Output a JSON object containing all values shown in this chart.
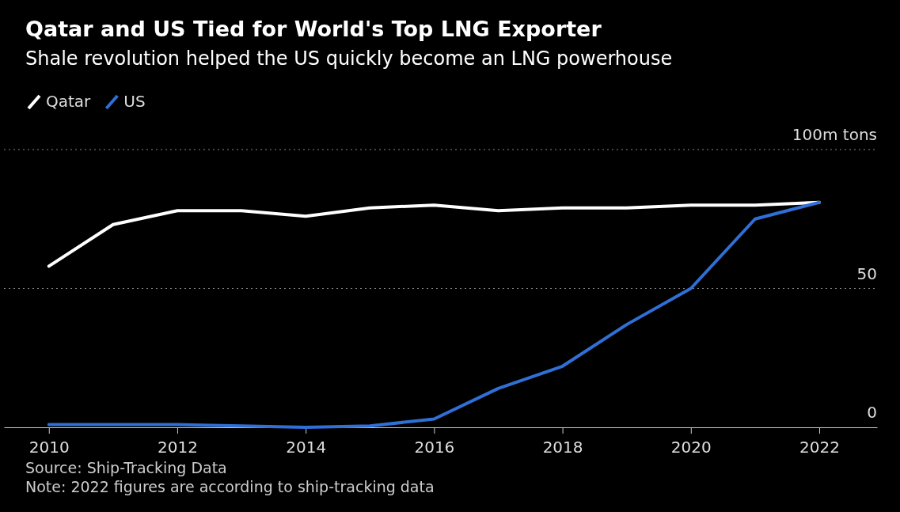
{
  "chart_data": {
    "type": "line",
    "title": "Qatar and US Tied for World's Top LNG Exporter",
    "subtitle": "Shale revolution helped the US quickly become an LNG powerhouse",
    "x": [
      2010,
      2011,
      2012,
      2013,
      2014,
      2015,
      2016,
      2017,
      2018,
      2019,
      2020,
      2021,
      2022
    ],
    "series": [
      {
        "name": "Qatar",
        "color": "#ffffff",
        "values": [
          58,
          73,
          78,
          78,
          76,
          79,
          80,
          78,
          79,
          79,
          80,
          80,
          81
        ]
      },
      {
        "name": "US",
        "color": "#2f6fd6",
        "values": [
          1,
          1,
          1,
          0.5,
          0,
          0.5,
          3,
          14,
          22,
          37,
          50,
          75,
          81
        ]
      }
    ],
    "xlim": [
      2009.3,
      2022.9
    ],
    "xticks": [
      2010,
      2012,
      2014,
      2016,
      2018,
      2020,
      2022
    ],
    "ylim": [
      0,
      100
    ],
    "yticks": [
      0,
      50,
      {
        "value": 100,
        "label": "100m tons"
      }
    ],
    "grid": "y",
    "legend": "top left",
    "line_style": "solid",
    "annotations": [
      "Source: Ship-Tracking Data",
      "Note: 2022 figures are according to ship-tracking data"
    ]
  }
}
